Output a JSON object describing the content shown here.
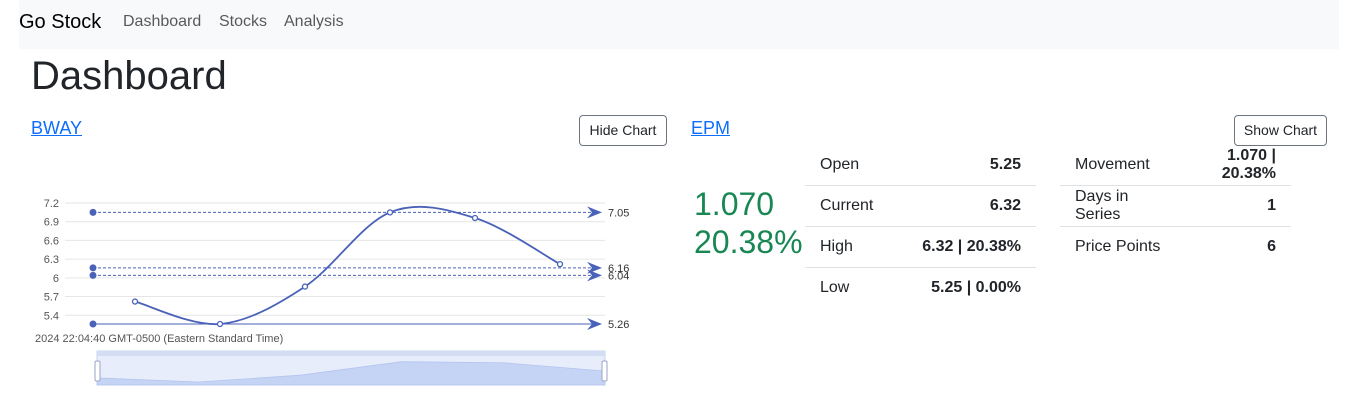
{
  "nav": {
    "brand": "Go Stock",
    "items": [
      "Dashboard",
      "Stocks",
      "Analysis"
    ]
  },
  "page": {
    "title": "Dashboard"
  },
  "cards": [
    {
      "ticker": "BWAY",
      "button": "Hide Chart"
    },
    {
      "ticker": "EPM",
      "button": "Show Chart",
      "movement_value": "1.070",
      "movement_percent": "20.38%",
      "stats": [
        {
          "label": "Open",
          "value": "5.25"
        },
        {
          "label": "Current",
          "value": "6.32"
        },
        {
          "label": "High",
          "value": "6.32 | 20.38%"
        },
        {
          "label": "Low",
          "value": "5.25 | 0.00%"
        }
      ],
      "series_info": [
        {
          "label": "Movement",
          "value": "1.070 | 20.38%"
        },
        {
          "label": "Days in Series",
          "value": "1"
        },
        {
          "label": "Price Points",
          "value": "6"
        }
      ]
    }
  ],
  "colors": {
    "accent": "#0d6efd",
    "positive": "#198754",
    "chart_line": "#4a62b8",
    "navbar_bg": "#f8f9fa"
  },
  "chart_data": {
    "type": "line",
    "x_caption": "2024 22:04:40 GMT-0500 (Eastern Standard Time)",
    "yticks": [
      "7.2",
      "6.9",
      "6.6",
      "6.3",
      "6",
      "5.7",
      "5.4"
    ],
    "ylim": [
      5.26,
      7.2
    ],
    "series": [
      {
        "values": [
          5.62,
          5.26,
          5.86,
          7.05,
          6.96,
          6.22
        ]
      }
    ],
    "marklines": [
      {
        "value": 7.05,
        "label": "7.05"
      },
      {
        "value": 6.16,
        "label": "6.16"
      },
      {
        "value": 6.04,
        "label": "6.04"
      },
      {
        "value": 5.26,
        "label": "5.26"
      }
    ],
    "grid": true
  }
}
